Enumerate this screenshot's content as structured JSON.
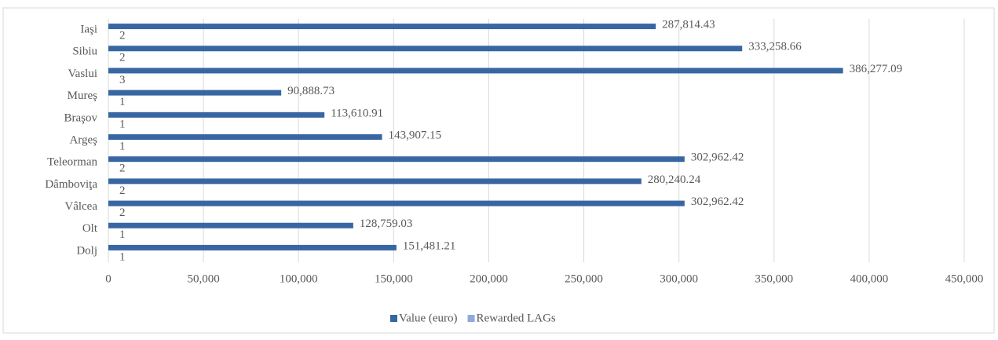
{
  "chart_data": {
    "type": "bar",
    "orientation": "horizontal",
    "categories": [
      "Iaşi",
      "Sibiu",
      "Vaslui",
      "Mureş",
      "Braşov",
      "Argeş",
      "Teleorman",
      "Dâmboviţa",
      "Vâlcea",
      "Olt",
      "Dolj"
    ],
    "series": [
      {
        "name": "Value (euro)",
        "color": "#3866a3",
        "values": [
          287814.43,
          333258.66,
          386277.09,
          90888.73,
          113610.91,
          143907.15,
          302962.42,
          280240.24,
          302962.42,
          128759.03,
          151481.21
        ],
        "value_labels": [
          "287,814.43",
          "333,258.66",
          "386,277.09",
          "90,888.73",
          "113,610.91",
          "143,907.15",
          "302,962.42",
          "280,240.24",
          "302,962.42",
          "128,759.03",
          "151,481.21"
        ]
      },
      {
        "name": "Rewarded LAGs",
        "color": "#8eaadb",
        "values": [
          2,
          2,
          3,
          1,
          1,
          1,
          2,
          2,
          2,
          1,
          1
        ]
      }
    ],
    "xlim": [
      0,
      450000
    ],
    "xticks": [
      0,
      {
        "value": 50000,
        "label": "50,000"
      },
      {
        "value": 100000,
        "label": "100,000"
      },
      {
        "value": 150000,
        "label": "150,000"
      },
      {
        "value": 200000,
        "label": "200,000"
      },
      {
        "value": 250000,
        "label": "250,000"
      },
      {
        "value": 300000,
        "label": "300,000"
      },
      {
        "value": 350000,
        "label": "350,000"
      },
      {
        "value": 400000,
        "label": "400,000"
      },
      {
        "value": 450000,
        "label": "450,000"
      }
    ],
    "grid": true,
    "legend": "bottom"
  }
}
